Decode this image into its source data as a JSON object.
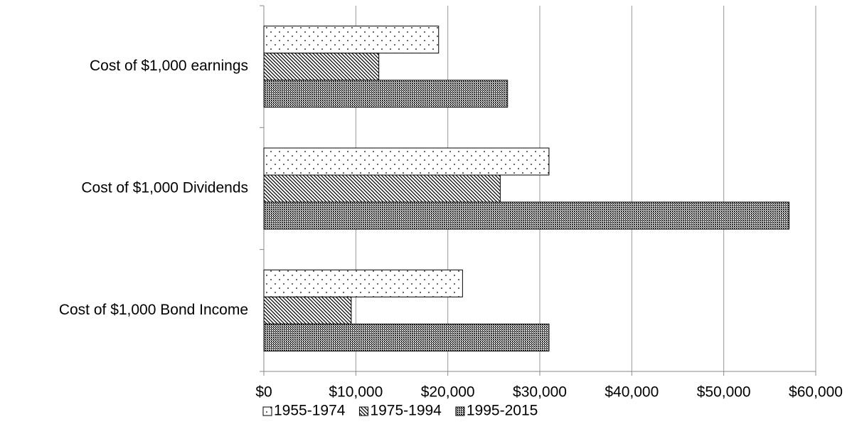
{
  "chart_data": {
    "type": "hbar",
    "categories": [
      "Cost of $1,000 earnings",
      "Cost of $1,000 Dividends",
      "Cost of $1,000 Bond Income"
    ],
    "series": [
      {
        "name": "1955-1974",
        "color": "#000000",
        "pattern": "dots",
        "values": [
          19000,
          31000,
          21600
        ]
      },
      {
        "name": "1975-1994",
        "color": "#000000",
        "pattern": "hatch",
        "values": [
          12500,
          25700,
          9500
        ]
      },
      {
        "name": "1995-2015",
        "color": "#000000",
        "pattern": "dense",
        "values": [
          26500,
          57100,
          31000
        ]
      }
    ],
    "xlim": [
      0,
      60000
    ],
    "xticks": [
      {
        "value": 0,
        "label": "$0"
      },
      {
        "value": 10000,
        "label": "$10,000"
      },
      {
        "value": 20000,
        "label": "$20,000"
      },
      {
        "value": 30000,
        "label": "$30,000"
      },
      {
        "value": 40000,
        "label": "$40,000"
      },
      {
        "value": 50000,
        "label": "$50,000"
      },
      {
        "value": 60000,
        "label": "$60,000"
      }
    ],
    "grid": true,
    "legend": "bottom"
  }
}
